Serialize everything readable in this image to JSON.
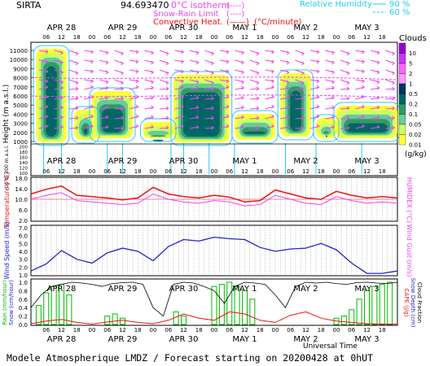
{
  "header": {
    "site": "SIRTA",
    "value_text": "94.693470",
    "iso_label": "0°C isotherm",
    "snow_label": "Snow-Rain Limit",
    "conv_label": "Convective Heat.",
    "unit_label": "(°C/minute)",
    "legend_bracket": "(----)",
    "legend_bracket_solid": "(——)",
    "rh_label": "Relative Humidity",
    "rh_90": "90 %",
    "rh_60": "60 %"
  },
  "axes": {
    "days": [
      "APR 28",
      "APR 29",
      "APR 30",
      "MAY 1",
      "MAY 2",
      "MAY 3"
    ],
    "hours": [
      "06",
      "12",
      "18",
      "00"
    ],
    "universal_time": "Universal Time",
    "height_label": "Height (m a.s.l.)",
    "height_low_label": "Up to 200 m a.s.l.",
    "temp_label": "Temperature (°C)",
    "humidex_label": "HUMIDEX (°C)",
    "ws_label": "Wind Speed (m/s)",
    "wg_label": "Wind Gust (m/s)",
    "rain_label": "Rain (mm/hour)",
    "snow_label": "Snow (cm/hour)",
    "cape_label": "CAPE (J/g)",
    "snowdepth_label": "Snow Depth (cm)",
    "cloudfrac_label": "Cloud Fraction"
  },
  "colorbar": {
    "title": "Clouds",
    "unit": "(g/kg)",
    "levels": [
      "10",
      "5",
      "2",
      "1",
      "0.5",
      "0.2",
      "0.1",
      "0.05",
      "0.02",
      "0.01"
    ],
    "colors": [
      "#9900cc",
      "#cc33ff",
      "#ff66ff",
      "#ff99ff",
      "#003366",
      "#006666",
      "#339966",
      "#66cc99",
      "#ccff66",
      "#ffff33"
    ]
  },
  "footer": {
    "text": "Modele Atmospherique LMDZ / Forecast starting on 20200428 at 0hUT"
  },
  "colors": {
    "temperature": "#ee1111",
    "humidex": "#ee44ee",
    "wind": "#2222cc",
    "rain": "#00bb00",
    "cape": "#ee1111",
    "accent_magenta": "#ee44ee",
    "accent_cyan": "#22ccee"
  },
  "chart_data": [
    {
      "type": "heatmap",
      "name": "clouds",
      "ylabel": "Height (m a.s.l.)",
      "y_ticks": [
        1000,
        2000,
        3000,
        4000,
        5000,
        6000,
        7000,
        8000,
        9000,
        10000,
        11000
      ],
      "y_ticks_low": [
        100,
        120,
        140,
        160,
        180,
        200
      ],
      "ylim": [
        0,
        11600
      ]
    },
    {
      "type": "line",
      "name": "temperature",
      "ylabel": "Temperature (°C)",
      "ylim": [
        2,
        18
      ],
      "y_ticks": [
        2.0,
        6.0,
        10.0,
        14.0,
        18.0
      ],
      "x_hours": [
        0,
        6,
        12,
        18,
        24,
        30,
        36,
        42,
        48,
        54,
        60,
        66,
        72,
        78,
        84,
        90,
        96,
        102,
        108,
        114,
        120,
        126,
        132,
        138,
        144
      ],
      "temperature": [
        12,
        13.8,
        15,
        11.5,
        11,
        10.5,
        9.8,
        10.5,
        14.5,
        12,
        11,
        10.5,
        11.5,
        10.8,
        9,
        9.5,
        13.5,
        12,
        10.5,
        10,
        13,
        11.5,
        10.5,
        11,
        10.5
      ],
      "humidex": [
        10,
        11.5,
        12.5,
        9.5,
        9,
        8.5,
        8,
        8.5,
        12,
        10,
        9,
        8.5,
        9.5,
        9,
        7.5,
        8,
        11.5,
        10,
        8.5,
        8,
        11,
        9.5,
        8.5,
        9,
        8.5
      ]
    },
    {
      "type": "line",
      "name": "wind",
      "ylabel": "Wind Speed (m/s)",
      "ylim": [
        1,
        7
      ],
      "y_ticks": [
        1.0,
        2.0,
        3.0,
        4.0,
        5.0,
        6.0,
        7.0
      ],
      "x_hours": [
        0,
        6,
        12,
        18,
        24,
        30,
        36,
        42,
        48,
        54,
        60,
        66,
        72,
        78,
        84,
        90,
        96,
        102,
        108,
        114,
        120,
        126,
        132,
        138,
        144
      ],
      "values": [
        1.5,
        2.4,
        4.1,
        3.0,
        2.5,
        3.8,
        4.4,
        4.0,
        2.8,
        4.6,
        5.5,
        5.3,
        5.8,
        5.6,
        5.5,
        4.5,
        4.0,
        4.3,
        4.4,
        5.0,
        4.2,
        2.5,
        1.2,
        1.2,
        1.5
      ]
    },
    {
      "type": "bar",
      "name": "precip",
      "ylabel": "Rain (mm/hour)",
      "ylim": [
        0,
        1.0
      ],
      "y_ticks": [
        0.0,
        0.2,
        0.4,
        0.6,
        0.8,
        1.0
      ],
      "x_hours": [
        3,
        6,
        9,
        12,
        15,
        30,
        33,
        36,
        57,
        60,
        72,
        75,
        78,
        81,
        84,
        87,
        120,
        123,
        126,
        129,
        132,
        135,
        138,
        141
      ],
      "rain": [
        0.45,
        0.75,
        0.9,
        0.95,
        0.7,
        0.2,
        0.25,
        0.15,
        0.3,
        0.2,
        0.9,
        0.95,
        1.0,
        0.9,
        0.8,
        0.6,
        0.15,
        0.2,
        0.35,
        0.6,
        0.8,
        0.9,
        0.95,
        1.0
      ],
      "cloud_fraction_hours": [
        0,
        4,
        8,
        12,
        16,
        20,
        24,
        28,
        32,
        36,
        40,
        44,
        48,
        52,
        56,
        60,
        64,
        68,
        72,
        76,
        80,
        84,
        88,
        92,
        96,
        100,
        104,
        108,
        112,
        116,
        120,
        124,
        128,
        132,
        136,
        140,
        144
      ],
      "cloud_fraction": [
        0.4,
        0.7,
        0.9,
        0.95,
        1.0,
        0.98,
        0.95,
        0.9,
        0.97,
        0.99,
        1.0,
        0.95,
        0.4,
        0.2,
        0.95,
        1.0,
        0.98,
        0.9,
        0.8,
        0.5,
        0.9,
        1.0,
        0.98,
        0.95,
        0.7,
        0.4,
        0.9,
        1.0,
        0.98,
        1.0,
        0.97,
        0.95,
        0.99,
        1.0,
        0.98,
        0.97,
        1.0
      ],
      "cape_hours": [
        0,
        6,
        12,
        18,
        24,
        30,
        36,
        42,
        48,
        54,
        60,
        66,
        72,
        78,
        84,
        90,
        96,
        102,
        108,
        114,
        120,
        126,
        132,
        138,
        144
      ],
      "cape": [
        0.02,
        0.08,
        0.12,
        0.05,
        0.01,
        0.06,
        0.1,
        0.05,
        0.02,
        0.1,
        0.25,
        0.15,
        0.1,
        0.3,
        0.25,
        0.1,
        0.05,
        0.22,
        0.3,
        0.15,
        0.08,
        0.05,
        0.02,
        0.01,
        0.01
      ]
    }
  ]
}
